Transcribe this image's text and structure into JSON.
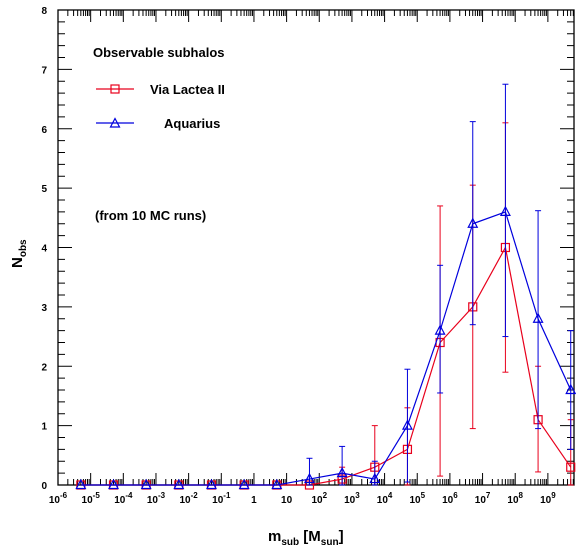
{
  "chart_data": {
    "type": "line",
    "title": "",
    "xscale": "log",
    "xlim_exp": [
      -6,
      9.8
    ],
    "ylim": [
      0,
      8
    ],
    "grid": false,
    "xlabel": {
      "main": "m",
      "sub": "sub",
      "mid": " [M",
      "sub2": "sun",
      "end": "]"
    },
    "ylabel": {
      "main": "N",
      "sub": "obs"
    },
    "x_exponents": [
      -5.3,
      -4.3,
      -3.3,
      -2.3,
      -1.3,
      -0.3,
      0.7,
      1.7,
      2.7,
      3.7,
      4.7,
      5.7,
      6.7,
      7.7,
      8.7,
      9.7
    ],
    "x_tick_labels": [
      {
        "exp": -6,
        "base": "10",
        "pow": "-6"
      },
      {
        "exp": -5,
        "base": "10",
        "pow": "-5"
      },
      {
        "exp": -4,
        "base": "10",
        "pow": "-4"
      },
      {
        "exp": -3,
        "base": "10",
        "pow": "-3"
      },
      {
        "exp": -2,
        "base": "10",
        "pow": "-2"
      },
      {
        "exp": -1,
        "base": "10",
        "pow": "-1"
      },
      {
        "exp": 0,
        "base": "1",
        "pow": ""
      },
      {
        "exp": 1,
        "base": "10",
        "pow": ""
      },
      {
        "exp": 2,
        "base": "10",
        "pow": "2"
      },
      {
        "exp": 3,
        "base": "10",
        "pow": "3"
      },
      {
        "exp": 4,
        "base": "10",
        "pow": "4"
      },
      {
        "exp": 5,
        "base": "10",
        "pow": "5"
      },
      {
        "exp": 6,
        "base": "10",
        "pow": "6"
      },
      {
        "exp": 7,
        "base": "10",
        "pow": "7"
      },
      {
        "exp": 8,
        "base": "10",
        "pow": "8"
      },
      {
        "exp": 9,
        "base": "10",
        "pow": "9"
      }
    ],
    "y_ticks": [
      0,
      1,
      2,
      3,
      4,
      5,
      6,
      7,
      8
    ],
    "y_tick_labels": [
      "0",
      "1",
      "2",
      "3",
      "4",
      "5",
      "6",
      "7",
      "8"
    ],
    "series": [
      {
        "name": "Via Lactea II",
        "color": "#e8001c",
        "marker": "square",
        "values": [
          0,
          0,
          0,
          0,
          0,
          0,
          0,
          0,
          0.1,
          0.3,
          0.6,
          2.4,
          3.0,
          4.0,
          1.1,
          0.3
        ],
        "err_low": [
          0,
          0,
          0,
          0,
          0,
          0,
          0,
          0,
          0.1,
          0.3,
          0.6,
          2.25,
          2.05,
          2.1,
          0.88,
          0.3
        ],
        "err_high": [
          0,
          0,
          0,
          0,
          0,
          0,
          0,
          0,
          0.2,
          0.7,
          0.7,
          2.3,
          2.05,
          2.1,
          0.9,
          0.8
        ]
      },
      {
        "name": "Aquarius",
        "color": "#0000dd",
        "marker": "triangle",
        "values": [
          0,
          0,
          0,
          0,
          0,
          0,
          0,
          0.1,
          0.2,
          0.1,
          1.0,
          2.6,
          4.4,
          4.6,
          2.8,
          1.6
        ],
        "err_low": [
          0,
          0,
          0,
          0,
          0,
          0,
          0,
          0.1,
          0.2,
          0.1,
          0.95,
          1.05,
          1.7,
          2.1,
          1.85,
          1.0
        ],
        "err_high": [
          0,
          0,
          0,
          0,
          0,
          0,
          0,
          0.35,
          0.45,
          0.3,
          0.95,
          1.1,
          1.72,
          2.15,
          1.82,
          1.0
        ]
      }
    ],
    "legend": {
      "title": "Observable subhalos",
      "position": "top-left",
      "entries": [
        "Via Lactea II",
        "Aquarius"
      ]
    },
    "annotation": "(from 10 MC runs)"
  }
}
